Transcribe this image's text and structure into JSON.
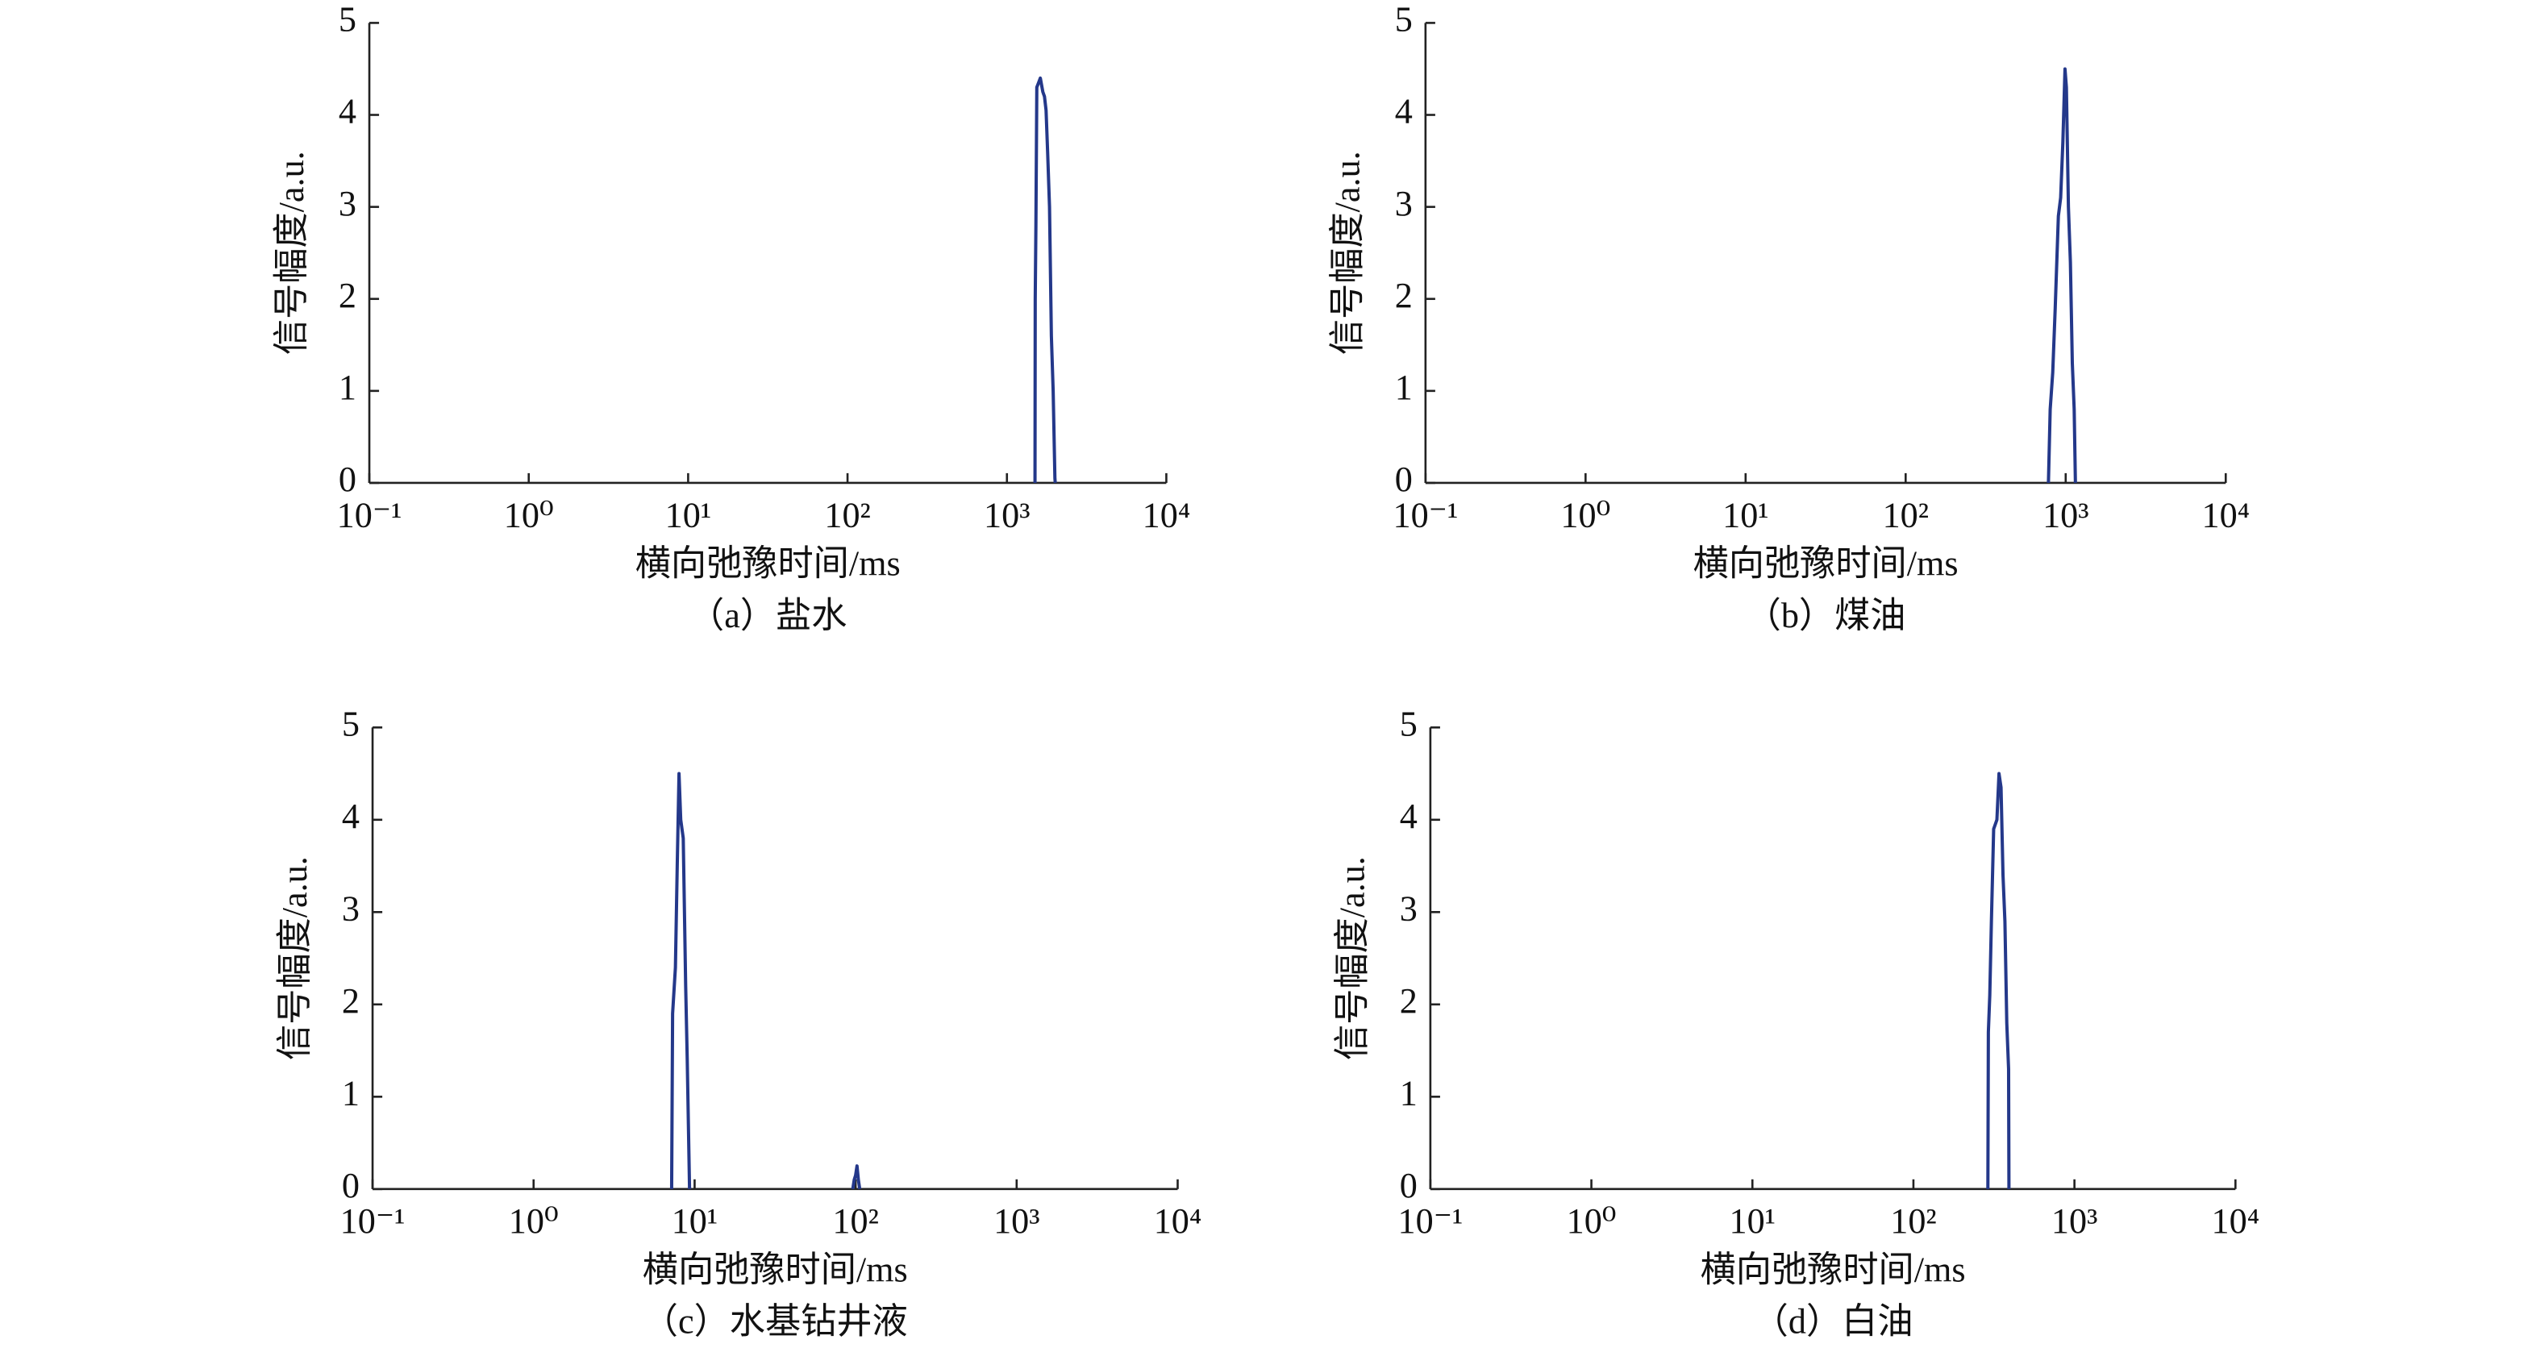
{
  "chart_data": [
    {
      "type": "line",
      "caption": "（a）盐水",
      "xlabel": "横向弛豫时间/ms",
      "ylabel": "信号幅度/a.u.",
      "xscale": "log",
      "color": "#24388a",
      "xlim": [
        0.1,
        10000
      ],
      "ylim": [
        0,
        5
      ],
      "xticks": [
        {
          "value": 0.1,
          "label": "10⁻¹"
        },
        {
          "value": 1,
          "label": "10⁰"
        },
        {
          "value": 10,
          "label": "10¹"
        },
        {
          "value": 100,
          "label": "10²"
        },
        {
          "value": 1000,
          "label": "10³"
        },
        {
          "value": 10000,
          "label": "10⁴"
        }
      ],
      "yticks": [
        0,
        1,
        2,
        3,
        4,
        5
      ],
      "x": [
        1500,
        1505,
        1520,
        1540,
        1580,
        1620,
        1680,
        1720,
        1760,
        1800,
        1850,
        1900,
        1950,
        2000,
        2010
      ],
      "values": [
        0,
        2.0,
        2.8,
        4.3,
        4.35,
        4.4,
        4.25,
        4.2,
        4.05,
        3.6,
        3.0,
        1.6,
        1.0,
        0.05,
        0
      ]
    },
    {
      "type": "line",
      "caption": "（b）煤油",
      "xlabel": "横向弛豫时间/ms",
      "ylabel": "信号幅度/a.u.",
      "xscale": "log",
      "color": "#24388a",
      "xlim": [
        0.1,
        10000
      ],
      "ylim": [
        0,
        5
      ],
      "xticks": [
        {
          "value": 0.1,
          "label": "10⁻¹"
        },
        {
          "value": 1,
          "label": "10⁰"
        },
        {
          "value": 10,
          "label": "10¹"
        },
        {
          "value": 100,
          "label": "10²"
        },
        {
          "value": 1000,
          "label": "10³"
        },
        {
          "value": 10000,
          "label": "10⁴"
        }
      ],
      "yticks": [
        0,
        1,
        2,
        3,
        4,
        5
      ],
      "x": [
        780,
        800,
        830,
        860,
        900,
        930,
        960,
        990,
        1010,
        1040,
        1070,
        1100,
        1130,
        1150
      ],
      "values": [
        0,
        0.8,
        1.2,
        1.9,
        2.9,
        3.1,
        3.7,
        4.5,
        4.3,
        3.0,
        2.4,
        1.3,
        0.8,
        0
      ]
    },
    {
      "type": "line",
      "caption": "（c）水基钻井液",
      "xlabel": "横向弛豫时间/ms",
      "ylabel": "信号幅度/a.u.",
      "xscale": "log",
      "color": "#24388a",
      "xlim": [
        0.1,
        10000
      ],
      "ylim": [
        0,
        5
      ],
      "xticks": [
        {
          "value": 0.1,
          "label": "10⁻¹"
        },
        {
          "value": 1,
          "label": "10⁰"
        },
        {
          "value": 10,
          "label": "10¹"
        },
        {
          "value": 100,
          "label": "10²"
        },
        {
          "value": 1000,
          "label": "10³"
        },
        {
          "value": 10000,
          "label": "10⁴"
        }
      ],
      "yticks": [
        0,
        1,
        2,
        3,
        4,
        5
      ],
      "x": [
        7.2,
        7.3,
        7.6,
        7.8,
        8.0,
        8.2,
        8.5,
        8.8,
        9.0,
        9.3,
        50,
        96,
        98,
        100,
        102,
        104,
        106
      ],
      "values": [
        0,
        1.9,
        2.4,
        3.5,
        4.5,
        4.0,
        3.8,
        2.2,
        1.4,
        0,
        null,
        0,
        0.1,
        0.15,
        0.25,
        0.1,
        0
      ]
    },
    {
      "type": "line",
      "caption": "（d）白油",
      "xlabel": "横向弛豫时间/ms",
      "ylabel": "信号幅度/a.u.",
      "xscale": "log",
      "color": "#24388a",
      "xlim": [
        0.1,
        10000
      ],
      "ylim": [
        0,
        5
      ],
      "xticks": [
        {
          "value": 0.1,
          "label": "10⁻¹"
        },
        {
          "value": 1,
          "label": "10⁰"
        },
        {
          "value": 10,
          "label": "10¹"
        },
        {
          "value": 100,
          "label": "10²"
        },
        {
          "value": 1000,
          "label": "10³"
        },
        {
          "value": 10000,
          "label": "10⁴"
        }
      ],
      "yticks": [
        0,
        1,
        2,
        3,
        4,
        5
      ],
      "x": [
        290,
        292,
        298,
        305,
        315,
        330,
        340,
        350,
        360,
        370,
        380,
        390,
        392
      ],
      "values": [
        0,
        1.7,
        2.1,
        2.9,
        3.9,
        4.0,
        4.5,
        4.35,
        3.4,
        2.9,
        1.8,
        1.3,
        0
      ]
    }
  ]
}
